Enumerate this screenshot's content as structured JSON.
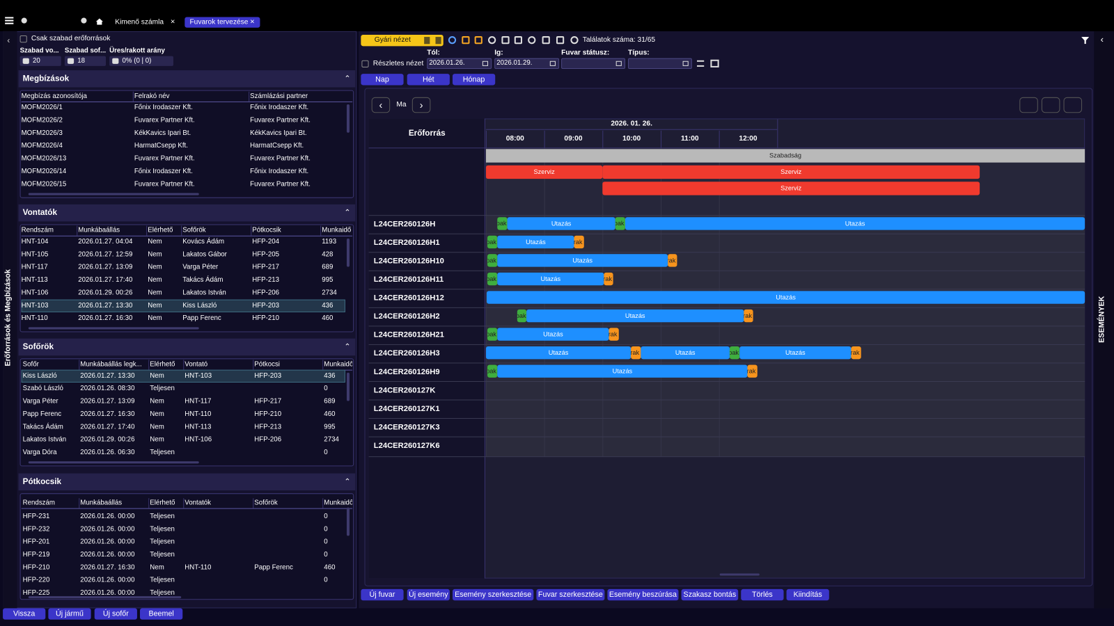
{
  "top_bar": {
    "tabs": [
      "Kimenő számla",
      "Fuvarok tervezése"
    ]
  },
  "left_panel": {
    "side_label": "Erőforrások és Megbízások",
    "only_free": "Csak szabad erőforrások",
    "stats": [
      {
        "label": "Szabad vo...",
        "value": "20"
      },
      {
        "label": "Szabad sof...",
        "value": "18"
      },
      {
        "label": "Üres/rakott arány",
        "value": "0% (0 | 0)"
      }
    ],
    "sections": [
      {
        "title": "Megbízások",
        "columns": [
          "Megbízás azonosítója",
          "Felrakó név",
          "Számlázási partner"
        ],
        "rows": [
          [
            "MOFM2026/1",
            "Főnix Irodaszer Kft.",
            "Főnix Irodaszer Kft."
          ],
          [
            "MOFM2026/2",
            "Fuvarex Partner Kft.",
            "Fuvarex Partner Kft."
          ],
          [
            "MOFM2026/3",
            "KékKavics Ipari Bt.",
            "KékKavics Ipari Bt."
          ],
          [
            "MOFM2026/4",
            "HarmatCsepp Kft.",
            "HarmatCsepp Kft."
          ],
          [
            "MOFM2026/13",
            "Fuvarex Partner Kft.",
            "Fuvarex Partner Kft."
          ],
          [
            "MOFM2026/14",
            "Főnix Irodaszer Kft.",
            "Főnix Irodaszer Kft."
          ],
          [
            "MOFM2026/15",
            "Fuvarex Partner Kft.",
            "Fuvarex Partner Kft."
          ]
        ]
      },
      {
        "title": "Vontatók",
        "columns": [
          "Rendszám",
          "Munkábaállás",
          "Elérhető",
          "Sofőrök",
          "Pótkocsik",
          "Munkaidő"
        ],
        "rows": [
          [
            "HNT-104",
            "2026.01.27. 04:04",
            "Nem",
            "Kovács Ádám",
            "HFP-204",
            "1193"
          ],
          [
            "HNT-105",
            "2026.01.27. 12:59",
            "Nem",
            "Lakatos Gábor",
            "HFP-205",
            "428"
          ],
          [
            "HNT-117",
            "2026.01.27. 13:09",
            "Nem",
            "Varga Péter",
            "HFP-217",
            "689"
          ],
          [
            "HNT-113",
            "2026.01.27. 17:40",
            "Nem",
            "Takács Ádám",
            "HFP-213",
            "995"
          ],
          [
            "HNT-106",
            "2026.01.29. 00:26",
            "Nem",
            "Lakatos István",
            "HFP-206",
            "2734"
          ],
          [
            "HNT-103",
            "2026.01.27. 13:30",
            "Nem",
            "Kiss László",
            "HFP-203",
            "436"
          ],
          [
            "HNT-110",
            "2026.01.27. 16:30",
            "Nem",
            "Papp Ferenc",
            "HFP-210",
            "460"
          ]
        ]
      },
      {
        "title": "Sofőrök",
        "columns": [
          "Sofőr",
          "Munkábaállás legk...",
          "Elérhető",
          "Vontató",
          "Pótkocsi",
          "Munkaidő"
        ],
        "rows": [
          [
            "Kiss László",
            "2026.01.27. 13:30",
            "Nem",
            "HNT-103",
            "HFP-203",
            "436"
          ],
          [
            "Szabó László",
            "2026.01.26. 08:30",
            "Teljesen",
            null,
            null,
            "0"
          ],
          [
            "Varga Péter",
            "2026.01.27. 13:09",
            "Nem",
            "HNT-117",
            "HFP-217",
            "689"
          ],
          [
            "Papp Ferenc",
            "2026.01.27. 16:30",
            "Nem",
            "HNT-110",
            "HFP-210",
            "460"
          ],
          [
            "Takács Ádám",
            "2026.01.27. 17:40",
            "Nem",
            "HNT-113",
            "HFP-213",
            "995"
          ],
          [
            "Lakatos István",
            "2026.01.29. 00:26",
            "Nem",
            "HNT-106",
            "HFP-206",
            "2734"
          ],
          [
            "Varga Dóra",
            "2026.01.26. 06:30",
            "Teljesen",
            null,
            null,
            "0"
          ]
        ]
      },
      {
        "title": "Pótkocsik",
        "columns": [
          "Rendszám",
          "Munkábaállás",
          "Elérhető",
          "Vontatók",
          "Sofőrök",
          "Munkaidő"
        ],
        "rows": [
          [
            "HFP-231",
            "2026.01.26. 00:00",
            "Teljesen",
            null,
            null,
            "0"
          ],
          [
            "HFP-232",
            "2026.01.26. 00:00",
            "Teljesen",
            null,
            null,
            "0"
          ],
          [
            "HFP-201",
            "2026.01.26. 00:00",
            "Teljesen",
            null,
            null,
            "0"
          ],
          [
            "HFP-219",
            "2026.01.26. 00:00",
            "Teljesen",
            null,
            null,
            "0"
          ],
          [
            "HFP-210",
            "2026.01.27. 16:30",
            "Nem",
            "HNT-110",
            "Papp Ferenc",
            "460"
          ],
          [
            "HFP-220",
            "2026.01.26. 00:00",
            "Teljesen",
            null,
            null,
            "0"
          ],
          [
            "HFP-225",
            "2026.01.26. 00:00",
            "Teljesen",
            null,
            null,
            null
          ]
        ]
      }
    ],
    "buttons": [
      "Vissza",
      "Új jármű",
      "Új sofőr",
      "Beemel"
    ]
  },
  "planner": {
    "view": "Gyári nézet",
    "hits": "Találatok száma: 31/65",
    "detailed": "Részletes nézet",
    "from_label": "Tól:",
    "from": "2026.01.26.",
    "to_label": "Ig:",
    "to": "2026.01.29.",
    "status_label": "Fuvar státusz:",
    "type_label": "Típus:",
    "ranges": [
      "Nap",
      "Hét",
      "Hónap"
    ],
    "today": "Ma",
    "gantt": {
      "resource_header": "Erőforrás",
      "date": "2026. 01. 26.",
      "hours": [
        "08:00",
        "09:00",
        "10:00",
        "11:00",
        "12:00"
      ],
      "general_rows": [
        [
          "Szabadság"
        ],
        [
          "Szerviz",
          "Szerviz"
        ],
        [
          "Szerviz"
        ]
      ],
      "resources": [
        {
          "name": "L24CER260126H",
          "events": [
            "pak",
            "Utazás",
            "pak",
            "Utazás"
          ]
        },
        {
          "name": "L24CER260126H1",
          "events": [
            "pak",
            "Utazás",
            "rak"
          ]
        },
        {
          "name": "L24CER260126H10",
          "events": [
            "pak",
            "Utazás",
            "rak"
          ]
        },
        {
          "name": "L24CER260126H11",
          "events": [
            "pak",
            "Utazás",
            "rak"
          ]
        },
        {
          "name": "L24CER260126H12",
          "events": [
            "Utazás"
          ]
        },
        {
          "name": "L24CER260126H2",
          "events": [
            "pak",
            "Utazás",
            "rak"
          ]
        },
        {
          "name": "L24CER260126H21",
          "events": [
            "pak",
            "Utazás",
            "rak"
          ]
        },
        {
          "name": "L24CER260126H3",
          "events": [
            "Utazás",
            "rak",
            "Utazás",
            "pak",
            "Utazás",
            "rak"
          ]
        },
        {
          "name": "L24CER260126H9",
          "events": [
            "pak",
            "Utazás",
            "rak"
          ]
        },
        {
          "name": "L24CER260127K",
          "events": []
        },
        {
          "name": "L24CER260127K1",
          "events": []
        },
        {
          "name": "L24CER260127K3",
          "events": []
        },
        {
          "name": "L24CER260127K6",
          "events": []
        }
      ]
    },
    "actions": [
      "Új fuvar",
      "Új esemény",
      "Esemény szerkesztése",
      "Fuvar szerkesztése",
      "Esemény beszúrása",
      "Szakasz bontás",
      "Törlés",
      "Kiindítás"
    ],
    "events_tab": "ESEMÉNYEK"
  }
}
